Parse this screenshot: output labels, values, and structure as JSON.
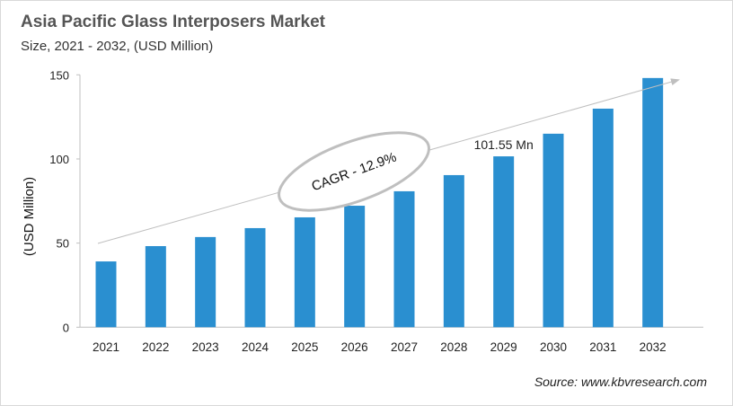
{
  "chart_data": {
    "type": "bar",
    "title": "Asia Pacific Glass Interposers Market",
    "subtitle": "Size, 2021 - 2032, (USD Million)",
    "xlabel": "",
    "ylabel": "(USD Million)",
    "ylim": [
      0,
      150
    ],
    "yticks": [
      0,
      50,
      100,
      150
    ],
    "grid": false,
    "categories": [
      "2021",
      "2022",
      "2023",
      "2024",
      "2025",
      "2026",
      "2027",
      "2028",
      "2029",
      "2030",
      "2031",
      "2032"
    ],
    "values": [
      39.1,
      48.2,
      53.6,
      58.9,
      65.3,
      72.2,
      80.8,
      90.4,
      101.55,
      115.0,
      129.9,
      148.1
    ],
    "bar_color": "#2a8fd0",
    "annotations": {
      "cagr": "CAGR - 12.9%",
      "value_label": "101.55 Mn",
      "value_label_category": "2029"
    },
    "source": "Source: www.kbvresearch.com"
  }
}
